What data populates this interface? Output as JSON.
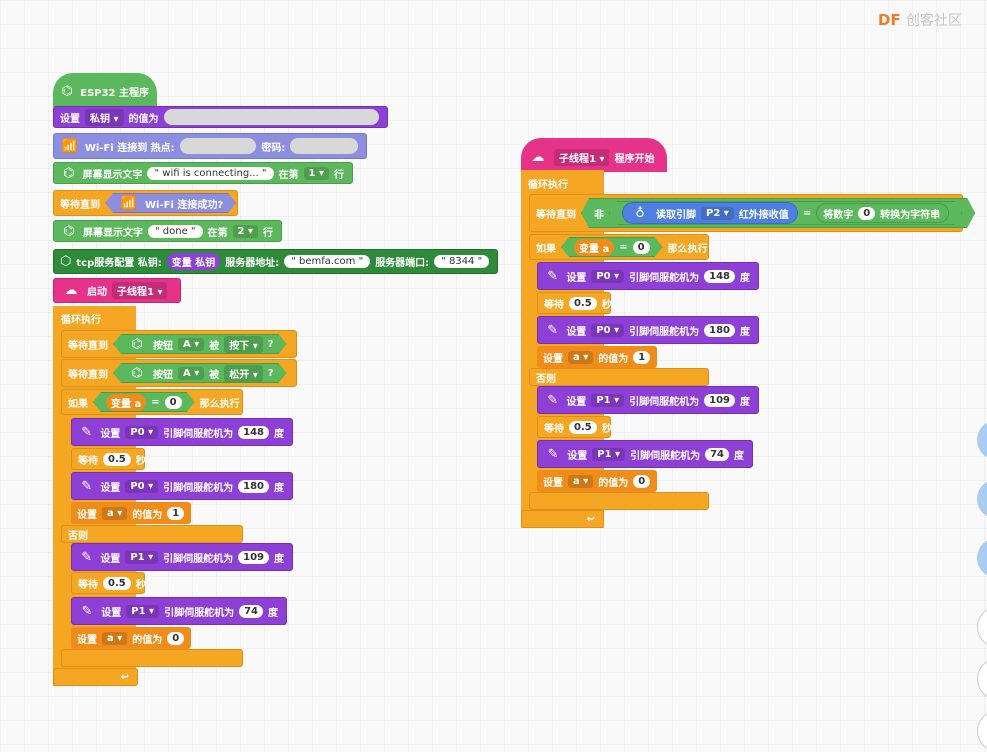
{
  "watermark": {
    "brand": "DF",
    "site": "创客社区"
  },
  "main": {
    "hat": "ESP32 主程序",
    "set_label": "设置",
    "secret_key": "私钥",
    "value_of": "的值为",
    "wifi_connect": "Wi-Fi 连接到 热点:",
    "password": "密码:",
    "wifi_label": "WiFi",
    "screen_text": "屏幕显示文字",
    "wifi_connecting": "\" wifi is connecting... \"",
    "at_row": "在第",
    "row": "行",
    "row1": "1",
    "wait_until": "等待直到",
    "wifi_success": "Wi-Fi 连接成功?",
    "done": "\" done \"",
    "row2": "2",
    "tcp_config": "tcp服务配置 私钥:",
    "var_secret": "变量 私钥",
    "server_addr": "服务器地址:",
    "bemfa": "\" bemfa.com \"",
    "server_port": "服务器端口:",
    "port": "\" 8344 \"",
    "start": "启动",
    "thread1": "子线程1",
    "loop": "循环执行",
    "button": "按钮",
    "btn_a": "A",
    "is": "被",
    "pressed": "按下",
    "released": "松开",
    "q": "?",
    "if": "如果",
    "var_a": "变量 a",
    "eq": "=",
    "zero": "0",
    "then": "那么执行",
    "set": "设置",
    "p0": "P0",
    "p1": "P1",
    "servo": "引脚伺服舵机为",
    "deg": "度",
    "wait": "等待",
    "sec": "秒",
    "half": "0.5",
    "a": "a",
    "one": "1",
    "else": "否则",
    "v148": "148",
    "v180": "180",
    "v109": "109",
    "v74": "74",
    "v0": "0"
  },
  "thread": {
    "hat_label": "子线程1",
    "start": "程序开始",
    "loop": "循环执行",
    "wait_until": "等待直到",
    "not": "非",
    "read_pin": "读取引脚",
    "p2": "P2",
    "ir": "红外接收值",
    "eq": "=",
    "number": "将数字",
    "to_str": "转换为字符串",
    "zero": "0"
  }
}
